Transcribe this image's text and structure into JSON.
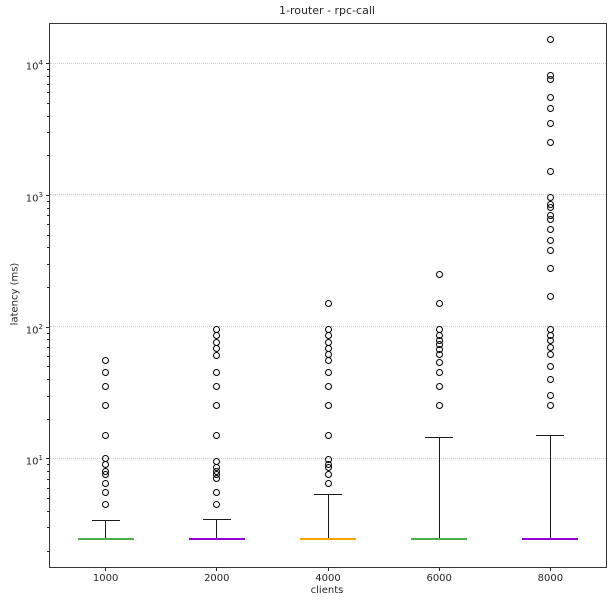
{
  "title": "1-router - rpc-call",
  "xlabel": "clients",
  "ylabel": "latency (ms)",
  "chart_data": {
    "type": "boxplot",
    "x_categories": [
      "1000",
      "2000",
      "4000",
      "6000",
      "8000"
    ],
    "yscale": "log",
    "ylim": [
      1.5,
      19800
    ],
    "y_major_ticks": [
      10,
      100,
      1000,
      10000
    ],
    "grid": {
      "axis": "y",
      "style": "dotted",
      "color": "#cfcfcf"
    },
    "axis_color": "#262626",
    "series": [
      {
        "label": "1000",
        "box_color": "#4daf4a",
        "q1": 2.4,
        "median": 2.45,
        "q3": 2.5,
        "whisker_low": 2.4,
        "whisker_high": 3.4,
        "fliers": [
          4.5,
          5.5,
          6.5,
          7.5,
          8,
          9,
          10,
          15,
          25,
          35,
          45,
          55
        ]
      },
      {
        "label": "2000",
        "box_color": "#9400d3",
        "q1": 2.4,
        "median": 2.45,
        "q3": 2.5,
        "whisker_low": 2.4,
        "whisker_high": 3.45,
        "fliers": [
          4.5,
          5.5,
          7,
          7.5,
          8,
          8.5,
          9.5,
          15,
          25,
          35,
          45,
          60,
          68,
          76,
          85,
          95
        ]
      },
      {
        "label": "4000",
        "box_color": "#ffa500",
        "q1": 2.4,
        "median": 2.45,
        "q3": 2.5,
        "whisker_low": 2.4,
        "whisker_high": 5.4,
        "fliers": [
          6.5,
          7.5,
          8.5,
          9,
          9.8,
          15,
          25,
          35,
          45,
          55,
          62,
          68,
          76,
          85,
          95,
          150
        ]
      },
      {
        "label": "6000",
        "box_color": "#4daf4a",
        "q1": 2.4,
        "median": 2.45,
        "q3": 2.5,
        "whisker_low": 2.4,
        "whisker_high": 14.5,
        "fliers": [
          25,
          35,
          45,
          53,
          61,
          67,
          73,
          79,
          85,
          95,
          150,
          250
        ]
      },
      {
        "label": "8000",
        "box_color": "#9400d3",
        "q1": 2.4,
        "median": 2.45,
        "q3": 2.5,
        "whisker_low": 2.4,
        "whisker_high": 15,
        "fliers": [
          25,
          30,
          40,
          50,
          62,
          70,
          78,
          85,
          95,
          170,
          275,
          380,
          450,
          550,
          650,
          700,
          800,
          850,
          950,
          1500,
          2500,
          3500,
          4500,
          5500,
          7500,
          8000,
          15000
        ]
      }
    ]
  }
}
